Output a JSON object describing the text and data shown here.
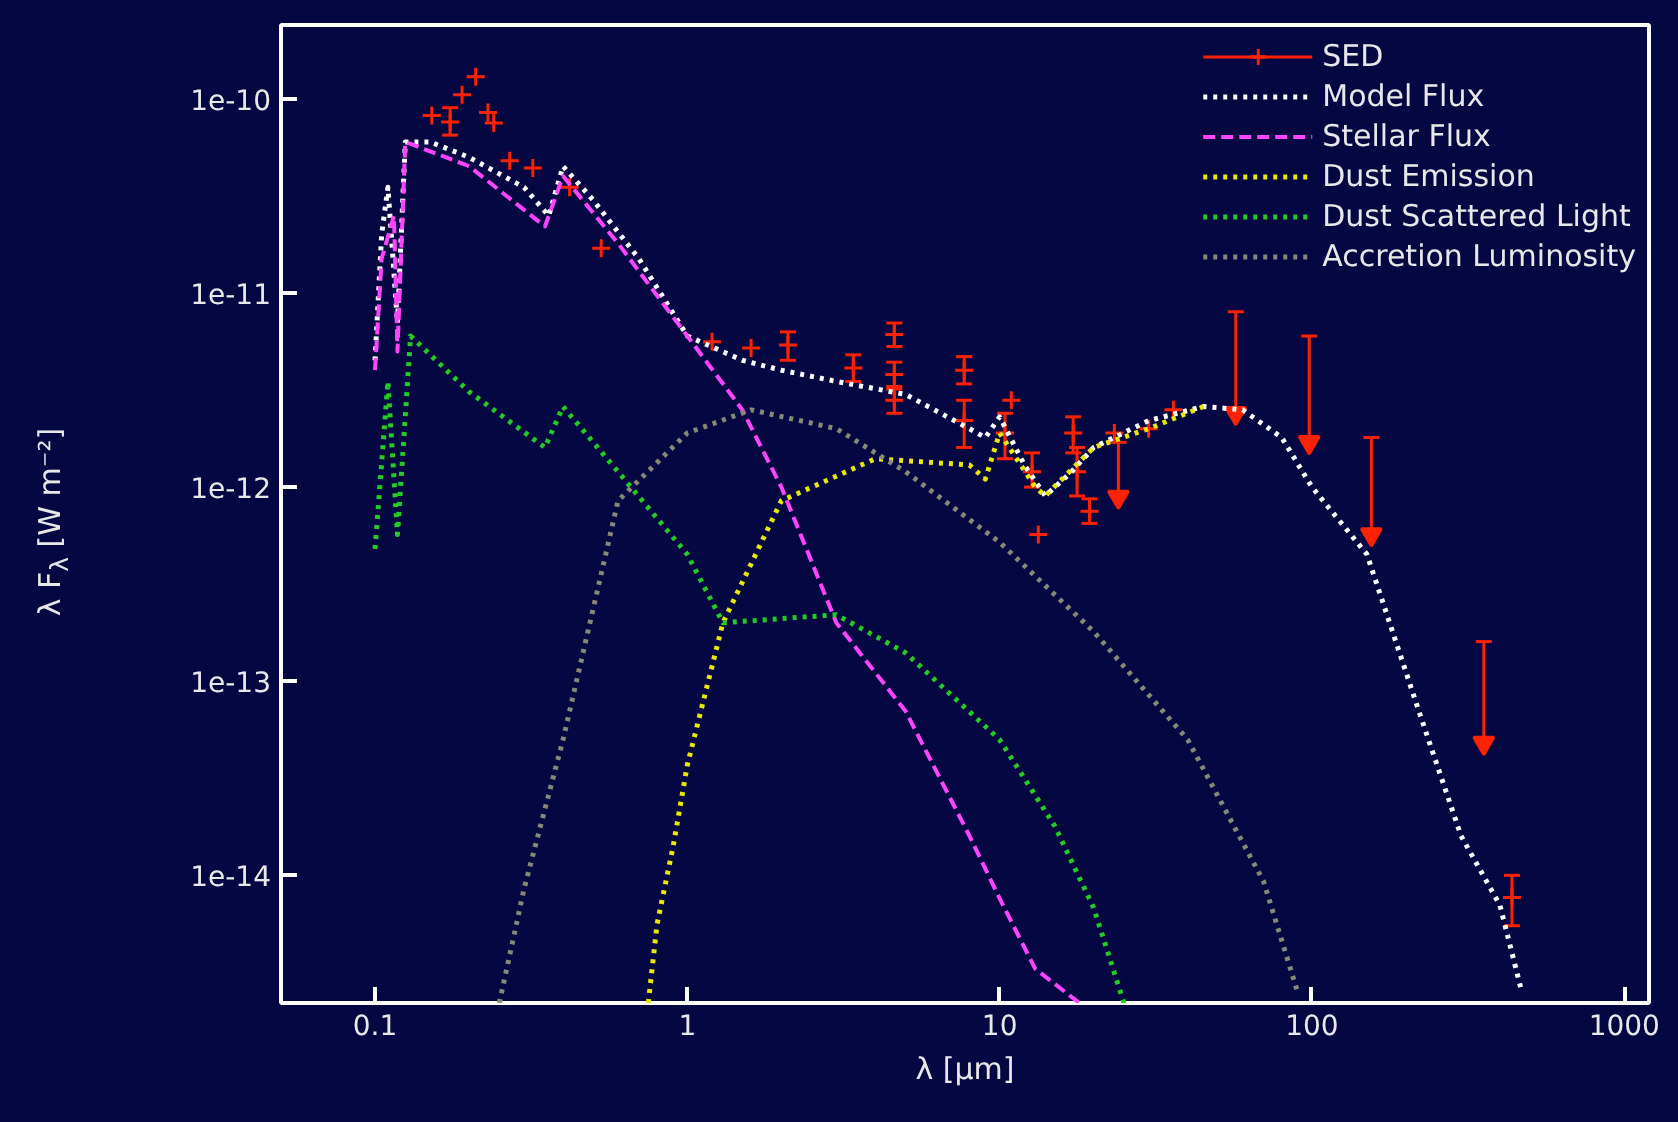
{
  "chart_data": {
    "type": "line",
    "xlabel": "λ [μm]",
    "ylabel": "λ F$_{λ}$ [W m⁻²]",
    "log": "xy",
    "grid": false,
    "legend": "top right",
    "xlim": [
      0.05,
      1200
    ],
    "ylim": [
      2.2e-15,
      2.4e-10
    ],
    "xticks": [
      0.1,
      1,
      10,
      100,
      1000
    ],
    "yticks": [
      {
        "value": 1e-10,
        "label": "1e-10"
      },
      {
        "value": 1e-11,
        "label": "1e-11"
      },
      {
        "value": 1e-12,
        "label": "1e-12"
      },
      {
        "value": 1e-13,
        "label": "1e-13"
      },
      {
        "value": 1e-14,
        "label": "1e-14"
      }
    ],
    "series": [
      {
        "name": "SED",
        "type": "scatter",
        "marker": "cross",
        "color": "#ff2200",
        "x": [
          0.152,
          0.174,
          0.19,
          0.21,
          0.23,
          0.24,
          0.27,
          0.32,
          0.42,
          0.53,
          1.2,
          1.6,
          2.1,
          3.4,
          4.6,
          4.6,
          4.6,
          7.7,
          7.7,
          10.9,
          10.4,
          12.7,
          13.3,
          17.2,
          17.7,
          19.4,
          23.3,
          30,
          36,
          437
        ],
        "values": [
          8.2e-11,
          7.6e-11,
          1.05e-10,
          1.3e-10,
          8.5e-11,
          7.5e-11,
          4.8e-11,
          4.4e-11,
          3.5e-11,
          1.7e-11,
          5.6e-12,
          5.2e-12,
          5.4e-12,
          4.1e-12,
          6.1e-12,
          3.8e-12,
          2.8e-12,
          4e-12,
          2.2e-12,
          2.8e-12,
          1.9e-12,
          1.2e-12,
          5.7e-13,
          1.9e-12,
          1.2e-12,
          7.5e-13,
          1.9e-12,
          2e-12,
          2.5e-12,
          7.7e-15
        ],
        "errors": [
          null,
          [
            6.5e-11,
            9e-11
          ],
          null,
          null,
          null,
          null,
          null,
          null,
          null,
          null,
          null,
          null,
          [
            4.5e-12,
            6.3e-12
          ],
          [
            3.5e-12,
            4.8e-12
          ],
          [
            5.3e-12,
            7e-12
          ],
          [
            3.2e-12,
            4.4e-12
          ],
          [
            2.4e-12,
            3.3e-12
          ],
          [
            3.4e-12,
            4.7e-12
          ],
          [
            1.6e-12,
            2.8e-12
          ],
          null,
          [
            1.4e-12,
            2.4e-12
          ],
          [
            1e-12,
            1.5e-12
          ],
          null,
          [
            1.5e-12,
            2.3e-12
          ],
          [
            9e-13,
            1.6e-12
          ],
          [
            6.5e-13,
            8.7e-13
          ],
          null,
          null,
          null,
          [
            5.5e-15,
            1e-14
          ]
        ]
      },
      {
        "type": "scatter",
        "marker": "triangle",
        "color": "#ff2200",
        "x": [
          24,
          57,
          98,
          155,
          355
        ],
        "values": [
          8.9e-13,
          2.4e-12,
          1.7e-12,
          5.7e-13,
          4.8e-14
        ],
        "errors": [
          [
            8.9e-13,
            1.7e-12
          ],
          [
            2.4e-12,
            8e-12
          ],
          [
            1.7e-12,
            6e-12
          ],
          [
            5.7e-13,
            1.8e-12
          ],
          [
            4.8e-14,
            1.6e-13
          ]
        ]
      },
      {
        "name": "Model Flux",
        "line_style": "dotted",
        "color": "#ffffff",
        "x": [
          0.1,
          0.105,
          0.11,
          0.118,
          0.125,
          0.15,
          0.2,
          0.3,
          0.36,
          0.4,
          0.5,
          0.7,
          1,
          1.5,
          2,
          3,
          5,
          8,
          9,
          10,
          12,
          14,
          17,
          20,
          30,
          45,
          60,
          80,
          100,
          150,
          220,
          300,
          400,
          470
        ],
        "values": [
          4.5e-12,
          2e-11,
          3.5e-11,
          7e-12,
          6e-11,
          6e-11,
          5e-11,
          3.5e-11,
          2.5e-11,
          4.5e-11,
          3e-11,
          1.5e-11,
          6e-12,
          4.5e-12,
          4e-12,
          3.5e-12,
          3e-12,
          2e-12,
          1.8e-12,
          2.3e-12,
          1.3e-12,
          9e-13,
          1.2e-12,
          1.6e-12,
          2.2e-12,
          2.6e-12,
          2.5e-12,
          1.8e-12,
          1e-12,
          4.5e-13,
          7e-14,
          1.6e-14,
          7e-15,
          2.5e-15
        ]
      },
      {
        "name": "Stellar Flux",
        "line_style": "dashed",
        "color": "#ff44ff",
        "x": [
          0.1,
          0.105,
          0.115,
          0.118,
          0.125,
          0.2,
          0.35,
          0.4,
          0.6,
          1,
          1.5,
          2,
          3,
          5,
          8,
          10,
          13,
          18
        ],
        "values": [
          4e-12,
          1.5e-11,
          2.5e-11,
          5e-12,
          6e-11,
          4.5e-11,
          2.2e-11,
          4e-11,
          1.8e-11,
          6e-12,
          2.5e-12,
          1e-12,
          2e-13,
          7e-14,
          1.6e-14,
          7.6e-15,
          3.3e-15,
          2.2e-15
        ]
      },
      {
        "name": "Dust Emission",
        "line_style": "dotted",
        "color": "#e8e800",
        "x": [
          0.75,
          0.8,
          0.9,
          1,
          1.3,
          2,
          4,
          8,
          9,
          10,
          13,
          14,
          20,
          30,
          45
        ],
        "values": [
          2.2e-15,
          5.6e-15,
          1.4e-14,
          3.7e-14,
          2e-13,
          8.5e-13,
          1.4e-12,
          1.3e-12,
          1.1e-12,
          1.9e-12,
          1e-12,
          9e-13,
          1.6e-12,
          2e-12,
          2.6e-12
        ]
      },
      {
        "name": "Dust Scattered Light",
        "line_style": "dotted",
        "color": "#22cc22",
        "x": [
          0.1,
          0.11,
          0.118,
          0.13,
          0.2,
          0.35,
          0.4,
          0.6,
          1,
          1.3,
          3,
          5,
          10,
          15,
          20,
          25
        ],
        "values": [
          4.8e-13,
          3.5e-12,
          5.7e-13,
          6e-12,
          3.1e-12,
          1.6e-12,
          2.6e-12,
          1.2e-12,
          4.5e-13,
          2e-13,
          2.2e-13,
          1.4e-13,
          5e-14,
          1.8e-14,
          6.8e-15,
          2.2e-15
        ]
      },
      {
        "name": "Accretion Luminosity",
        "line_style": "dotted",
        "color": "#888877",
        "x": [
          0.25,
          0.3,
          0.4,
          0.6,
          1,
          1.6,
          3,
          5,
          10,
          20,
          40,
          70,
          90
        ],
        "values": [
          2.2e-15,
          8.5e-15,
          5e-14,
          8.5e-13,
          1.9e-12,
          2.5e-12,
          2e-12,
          1.2e-12,
          5.2e-13,
          1.8e-13,
          5e-14,
          9.3e-15,
          2.5e-15
        ]
      }
    ]
  }
}
